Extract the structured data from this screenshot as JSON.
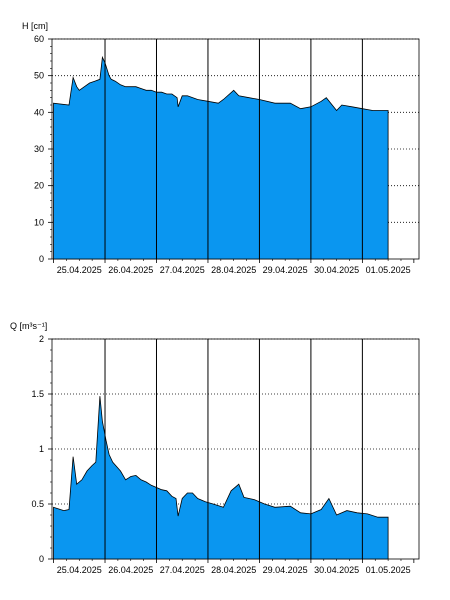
{
  "chart_data": [
    {
      "type": "area",
      "ylabel": "H [cm]",
      "ylim": [
        0,
        60
      ],
      "yticks": [
        0,
        10,
        20,
        30,
        40,
        50,
        60
      ],
      "day_labels": [
        "25.04.2025",
        "26.04.2025",
        "27.04.2025",
        "28.04.2025",
        "29.04.2025",
        "30.04.2025",
        "01.05.2025"
      ],
      "x_unit": "days since 25.04.2025 00:00",
      "xlim": [
        -0.03,
        7.1
      ],
      "fill_color": "#0a96f0",
      "grid": "dotted",
      "series": [
        {
          "x": [
            0.0,
            0.3,
            0.38,
            0.45,
            0.5,
            0.6,
            0.7,
            0.8,
            0.9,
            0.95,
            1.0,
            1.08,
            1.12,
            1.2,
            1.3,
            1.4,
            1.5,
            1.6,
            1.7,
            1.8,
            1.9,
            2.0,
            2.1,
            2.2,
            2.3,
            2.4,
            2.42,
            2.5,
            2.6,
            2.8,
            3.0,
            3.2,
            3.3,
            3.5,
            3.6,
            3.8,
            4.0,
            4.3,
            4.6,
            4.8,
            5.0,
            5.2,
            5.3,
            5.5,
            5.6,
            5.8,
            6.0,
            6.2,
            6.4,
            6.5
          ],
          "y": [
            42.5,
            42.0,
            49.5,
            47.0,
            46.0,
            47.0,
            48.0,
            48.5,
            49.0,
            55.0,
            53.5,
            50.0,
            49.0,
            48.5,
            47.5,
            47.0,
            47.0,
            47.0,
            46.5,
            46.0,
            46.0,
            45.5,
            45.5,
            45.0,
            45.0,
            44.0,
            41.5,
            44.5,
            44.5,
            43.5,
            43.0,
            42.5,
            43.5,
            46.0,
            44.5,
            44.0,
            43.5,
            42.5,
            42.5,
            41.0,
            41.5,
            43.0,
            44.0,
            40.5,
            42.0,
            41.5,
            41.0,
            40.5,
            40.5,
            40.5
          ]
        }
      ]
    },
    {
      "type": "area",
      "ylabel": "Q [m³s⁻¹]",
      "ylim": [
        0,
        2
      ],
      "yticks": [
        0,
        0.5,
        1,
        1.5,
        2
      ],
      "ytick_labels": [
        "0",
        "0.5",
        "1",
        "1.5",
        "2"
      ],
      "day_labels": [
        "25.04.2025",
        "26.04.2025",
        "27.04.2025",
        "28.04.2025",
        "29.04.2025",
        "30.04.2025",
        "01.05.2025"
      ],
      "x_unit": "days since 25.04.2025 00:00",
      "xlim": [
        -0.03,
        7.1
      ],
      "fill_color": "#0a96f0",
      "grid": "dotted",
      "series": [
        {
          "x": [
            0.0,
            0.2,
            0.3,
            0.38,
            0.45,
            0.55,
            0.65,
            0.75,
            0.82,
            0.9,
            0.95,
            1.02,
            1.08,
            1.15,
            1.3,
            1.4,
            1.5,
            1.6,
            1.7,
            1.8,
            1.9,
            2.0,
            2.1,
            2.2,
            2.3,
            2.38,
            2.42,
            2.5,
            2.6,
            2.7,
            2.8,
            2.95,
            3.1,
            3.3,
            3.45,
            3.6,
            3.7,
            3.9,
            4.1,
            4.3,
            4.6,
            4.8,
            5.0,
            5.2,
            5.35,
            5.5,
            5.7,
            5.9,
            6.1,
            6.3,
            6.5
          ],
          "y": [
            0.47,
            0.44,
            0.45,
            0.93,
            0.68,
            0.72,
            0.8,
            0.85,
            0.88,
            1.48,
            1.25,
            1.08,
            0.95,
            0.88,
            0.8,
            0.72,
            0.75,
            0.76,
            0.72,
            0.7,
            0.67,
            0.65,
            0.63,
            0.62,
            0.57,
            0.55,
            0.39,
            0.55,
            0.6,
            0.6,
            0.55,
            0.52,
            0.5,
            0.47,
            0.62,
            0.68,
            0.56,
            0.54,
            0.5,
            0.47,
            0.48,
            0.42,
            0.41,
            0.45,
            0.55,
            0.4,
            0.44,
            0.42,
            0.41,
            0.38,
            0.38
          ]
        }
      ]
    }
  ]
}
